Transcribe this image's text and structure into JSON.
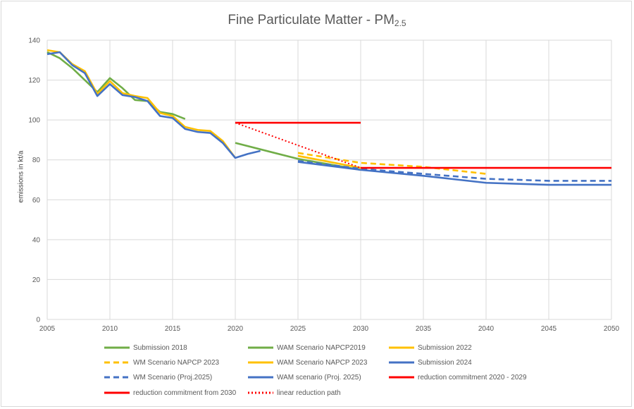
{
  "chart_data": {
    "type": "line",
    "title": "Fine Particulate Matter - PM",
    "title_subscript": "2.5",
    "ylabel": "emissions in kt/a",
    "xlabel": "",
    "xlim": [
      2005,
      2050
    ],
    "ylim": [
      0,
      140
    ],
    "xticks": [
      2005,
      2010,
      2015,
      2020,
      2025,
      2030,
      2035,
      2040,
      2045,
      2050
    ],
    "yticks": [
      0,
      20,
      40,
      60,
      80,
      100,
      120,
      140
    ],
    "grid": true,
    "legend_position": "bottom",
    "series": [
      {
        "name": "Submission 2018",
        "color": "#70AD47",
        "style": "solid",
        "x": [
          2005,
          2006,
          2007,
          2008,
          2009,
          2010,
          2011,
          2012,
          2013,
          2014,
          2015,
          2016
        ],
        "y": [
          134,
          131,
          126,
          120,
          114,
          121,
          116,
          110,
          109.5,
          104,
          103,
          100.5
        ]
      },
      {
        "name": "WAM Scenario NAPCP2019",
        "color": "#70AD47",
        "style": "solid",
        "x": [
          2020,
          2025,
          2030
        ],
        "y": [
          88.5,
          80.5,
          75
        ]
      },
      {
        "name": "Submission 2022",
        "color": "#FFC000",
        "style": "solid",
        "x": [
          2005,
          2006,
          2007,
          2008,
          2009,
          2010,
          2011,
          2012,
          2013,
          2014,
          2015,
          2016,
          2017,
          2018,
          2019,
          2020
        ],
        "y": [
          135,
          134,
          128,
          124.5,
          113,
          119.5,
          113.5,
          112,
          111,
          103.5,
          102,
          96.5,
          95,
          94.5,
          89.5,
          81
        ]
      },
      {
        "name": "WM Scenario NAPCP 2023",
        "color": "#FFC000",
        "style": "dashed",
        "x": [
          2025,
          2030,
          2035,
          2040
        ],
        "y": [
          83.5,
          78.5,
          76.5,
          73
        ]
      },
      {
        "name": "WAM Scenario NAPCP 2023",
        "color": "#FFC000",
        "style": "solid",
        "x": [
          2025,
          2030
        ],
        "y": [
          82,
          76
        ]
      },
      {
        "name": "Submission 2024",
        "color": "#4472C4",
        "style": "solid",
        "x": [
          2005,
          2006,
          2007,
          2008,
          2009,
          2010,
          2011,
          2012,
          2013,
          2014,
          2015,
          2016,
          2017,
          2018,
          2019,
          2020,
          2021,
          2022
        ],
        "y": [
          133,
          134,
          127.5,
          123.5,
          112,
          118,
          112.5,
          111.5,
          109.5,
          102,
          101,
          95.5,
          94,
          93.5,
          88.5,
          81,
          83,
          84.5
        ]
      },
      {
        "name": "WM Scenario (Proj.2025)",
        "color": "#4472C4",
        "style": "dashed",
        "x": [
          2025,
          2030,
          2035,
          2040,
          2045,
          2050
        ],
        "y": [
          79.5,
          75.5,
          73,
          70.5,
          69.5,
          69.5
        ]
      },
      {
        "name": "WAM scenario (Proj. 2025)",
        "color": "#4472C4",
        "style": "solid",
        "x": [
          2025,
          2030,
          2035,
          2040,
          2045,
          2050
        ],
        "y": [
          79,
          75,
          72,
          68.5,
          67.5,
          67.5
        ]
      },
      {
        "name": "reduction commitment 2020 - 2029",
        "color": "#FF0000",
        "style": "solid",
        "x": [
          2020,
          2030
        ],
        "y": [
          98.6,
          98.6
        ]
      },
      {
        "name": "reduction commitment from 2030",
        "color": "#FF0000",
        "style": "solid",
        "x": [
          2030,
          2050
        ],
        "y": [
          76,
          76
        ]
      },
      {
        "name": "linear reduction path",
        "color": "#FF0000",
        "style": "dotted",
        "x": [
          2020,
          2030
        ],
        "y": [
          98.6,
          76
        ]
      }
    ]
  }
}
